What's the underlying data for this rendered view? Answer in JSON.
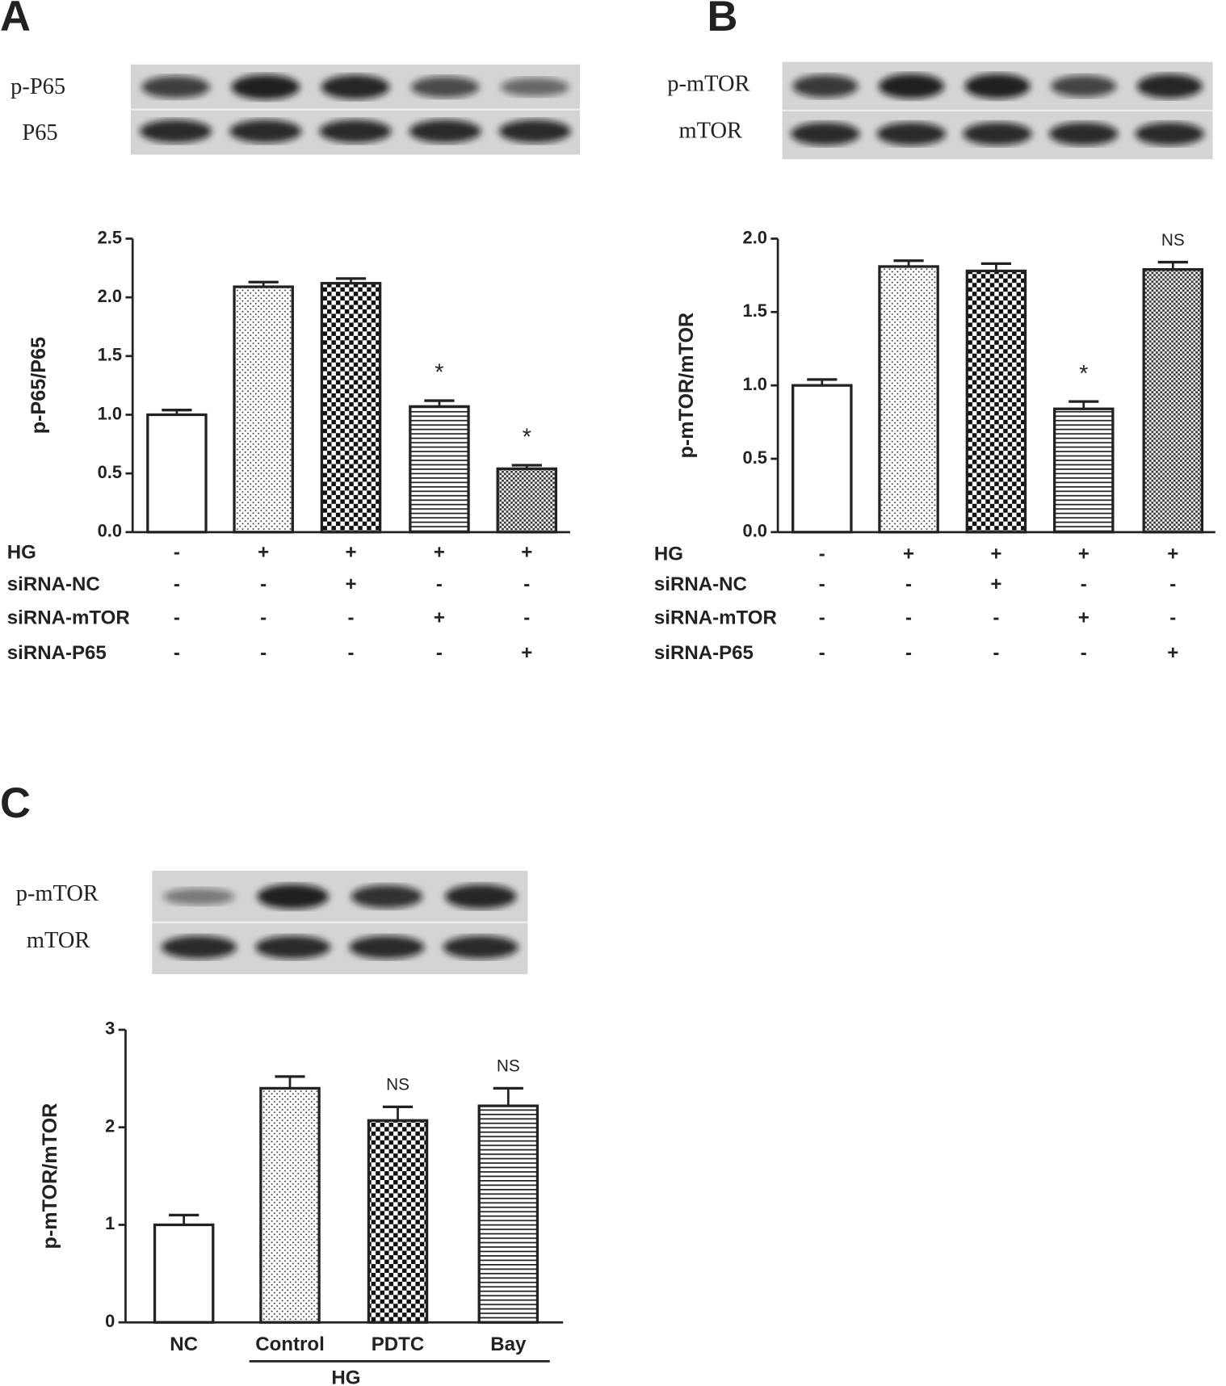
{
  "chart_data": [
    {
      "type": "bar",
      "panel": "A",
      "blot_labels": [
        "p-P65",
        "P65"
      ],
      "ylabel": "p-P65/P65",
      "values": [
        1.0,
        2.09,
        2.12,
        1.07,
        0.54
      ],
      "errors": [
        0.04,
        0.04,
        0.04,
        0.05,
        0.03
      ],
      "annotations": [
        null,
        null,
        null,
        "*",
        "*"
      ],
      "patterns": [
        "none",
        "dots",
        "checker",
        "hlines",
        "fine-checker"
      ],
      "ylim": [
        0,
        2.5
      ],
      "yticks": [
        {
          "value": 0,
          "label": "0.0"
        },
        0.5,
        {
          "value": 1,
          "label": "1.0"
        },
        1.5,
        {
          "value": 2,
          "label": "2.0"
        },
        2.5
      ],
      "conditions": [
        {
          "name": "HG",
          "marks": [
            "-",
            "+",
            "+",
            "+",
            "+"
          ]
        },
        {
          "name": "siRNA-NC",
          "marks": [
            "-",
            "-",
            "+",
            "-",
            "-"
          ]
        },
        {
          "name": "siRNA-mTOR",
          "marks": [
            "-",
            "-",
            "-",
            "+",
            "-"
          ]
        },
        {
          "name": "siRNA-P65",
          "marks": [
            "-",
            "-",
            "-",
            "-",
            "+"
          ]
        }
      ]
    },
    {
      "type": "bar",
      "panel": "B",
      "blot_labels": [
        "p-mTOR",
        "mTOR"
      ],
      "ylabel": "p-mTOR/mTOR",
      "values": [
        1.0,
        1.81,
        1.78,
        0.84,
        1.79
      ],
      "errors": [
        0.04,
        0.04,
        0.05,
        0.05,
        0.05
      ],
      "annotations": [
        null,
        null,
        null,
        "*",
        "NS"
      ],
      "patterns": [
        "none",
        "dots",
        "checker",
        "hlines",
        "fine-checker"
      ],
      "ylim": [
        0,
        2
      ],
      "yticks": [
        {
          "value": 0,
          "label": "0.0"
        },
        0.5,
        {
          "value": 1,
          "label": "1.0"
        },
        1.5,
        {
          "value": 2,
          "label": "2.0"
        }
      ],
      "conditions": [
        {
          "name": "HG",
          "marks": [
            "-",
            "+",
            "+",
            "+",
            "+"
          ]
        },
        {
          "name": "siRNA-NC",
          "marks": [
            "-",
            "-",
            "+",
            "-",
            "-"
          ]
        },
        {
          "name": "siRNA-mTOR",
          "marks": [
            "-",
            "-",
            "-",
            "+",
            "-"
          ]
        },
        {
          "name": "siRNA-P65",
          "marks": [
            "-",
            "-",
            "-",
            "-",
            "+"
          ]
        }
      ]
    },
    {
      "type": "bar",
      "panel": "C",
      "blot_labels": [
        "p-mTOR",
        "mTOR"
      ],
      "ylabel": "p-mTOR/mTOR",
      "categories": [
        "NC",
        "Control",
        "PDTC",
        "Bay"
      ],
      "group_label": "HG",
      "values": [
        1.0,
        2.4,
        2.07,
        2.22
      ],
      "errors": [
        0.1,
        0.12,
        0.14,
        0.18
      ],
      "annotations": [
        null,
        null,
        "NS",
        "NS"
      ],
      "patterns": [
        "none",
        "dots",
        "checker",
        "hlines"
      ],
      "ylim": [
        0,
        3
      ],
      "yticks": [
        0,
        1,
        2,
        3
      ]
    }
  ]
}
